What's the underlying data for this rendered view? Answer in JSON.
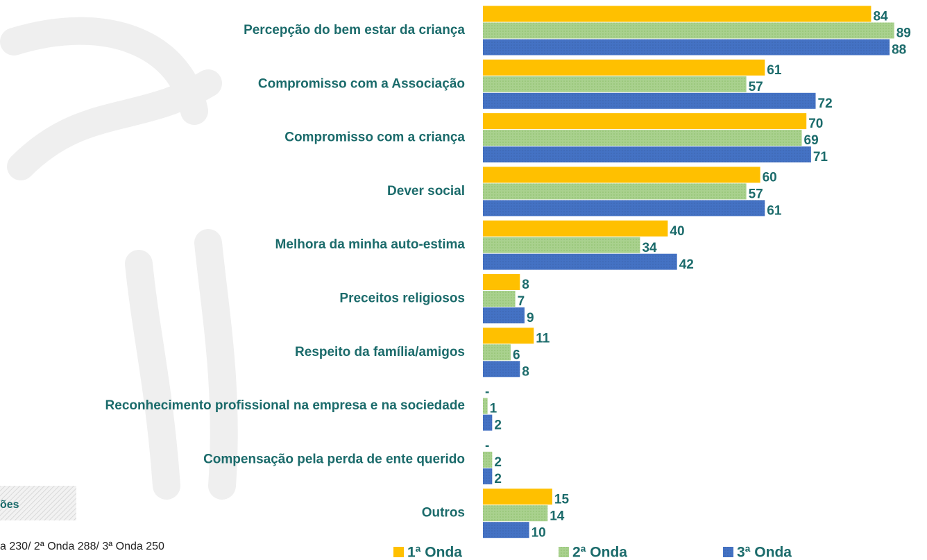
{
  "chart_data": {
    "type": "hbar",
    "categories": [
      "Percepção do bem estar da criança",
      "Compromisso com a Associação",
      "Compromisso com a criança",
      "Dever social",
      "Melhora da minha auto-estima",
      "Preceitos religiosos",
      "Respeito da família/amigos",
      "Reconhecimento profissional na empresa e na sociedade",
      "Compensação pela perda de ente querido",
      "Outros"
    ],
    "series": [
      {
        "name": "1ª Onda",
        "color": "#ffc000",
        "values": [
          84,
          61,
          70,
          60,
          40,
          8,
          11,
          null,
          null,
          15
        ],
        "value_labels": [
          "84",
          "61",
          "70",
          "60",
          "40",
          "8",
          "11",
          "-",
          "-",
          "15"
        ]
      },
      {
        "name": "2ª Onda",
        "color": "#a9d18e",
        "values": [
          89,
          57,
          69,
          57,
          34,
          7,
          6,
          1,
          2,
          14
        ]
      },
      {
        "name": "3ª Onda",
        "color": "#4472c4",
        "values": [
          88,
          72,
          71,
          61,
          42,
          9,
          8,
          2,
          2,
          10
        ]
      }
    ],
    "legend": "bottom",
    "notes": [
      "ões",
      "a 230/ 2ª Onda 288/ 3ª Onda 250"
    ]
  }
}
